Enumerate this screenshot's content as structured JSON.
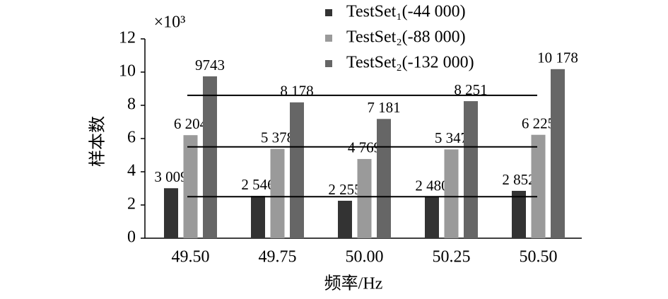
{
  "chart_data": {
    "type": "bar",
    "y_label": "样本数",
    "x_label": "频率/Hz",
    "y_multiplier": "×10³",
    "categories": [
      "49.50",
      "49.75",
      "50.00",
      "50.25",
      "50.50"
    ],
    "series": [
      {
        "name": "TestSet₁(-44 000)",
        "color": "#333333",
        "values": [
          3.009,
          2.546,
          2.255,
          2.48,
          2.852
        ],
        "value_labels": [
          "3 009",
          "2 546",
          "2 255",
          "2 480",
          "2 852"
        ]
      },
      {
        "name": "TestSet₂(-88 000)",
        "color": "#9a9a9a",
        "values": [
          6.204,
          5.378,
          4.769,
          5.347,
          6.225
        ],
        "value_labels": [
          "6 204",
          "5 378",
          "4 769",
          "5 347",
          "6 225"
        ]
      },
      {
        "name": "TestSet₂(-132 000)",
        "color": "#666666",
        "values": [
          9.743,
          8.178,
          7.181,
          8.251,
          10.178
        ],
        "value_labels": [
          "9743",
          "8 178",
          "7 181",
          "8 251",
          "10 178"
        ]
      }
    ],
    "hlines": [
      2.5,
      5.5,
      8.6
    ],
    "ylim": [
      0,
      12
    ],
    "yticks": [
      0,
      2,
      4,
      6,
      8,
      10,
      12
    ]
  }
}
